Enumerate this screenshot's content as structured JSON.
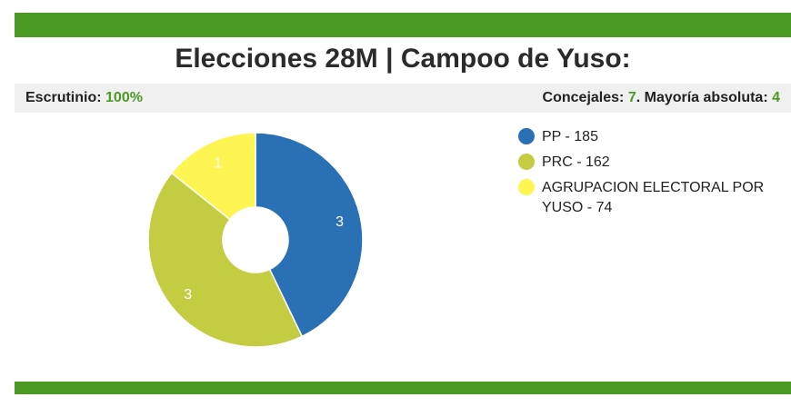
{
  "header": {
    "title": "Elecciones 28M | Campoo de Yuso:"
  },
  "info": {
    "scrutiny_label": "Escrutinio:",
    "scrutiny_value": "100%",
    "councillors_label": "Concejales:",
    "councillors_value": "7",
    "majority_label": ". Mayoría absoluta:",
    "majority_value": "4"
  },
  "colors": {
    "brand_green": "#4a9a24"
  },
  "chart_data": {
    "type": "pie",
    "donut": true,
    "slice_value": "seats",
    "slices": [
      {
        "name": "PP",
        "votes": 185,
        "seats": 3,
        "color": "#2a70b5",
        "label": "3",
        "legend": "PP - 185"
      },
      {
        "name": "PRC",
        "votes": 162,
        "seats": 3,
        "color": "#c4cc42",
        "label": "3",
        "legend": "PRC - 162"
      },
      {
        "name": "AGRUPACION ELECTORAL POR YUSO",
        "votes": 74,
        "seats": 1,
        "color": "#fdf552",
        "label": "1",
        "legend": "AGRUPACION ELECTORAL POR YUSO - 74"
      }
    ],
    "legend_position": "right"
  }
}
